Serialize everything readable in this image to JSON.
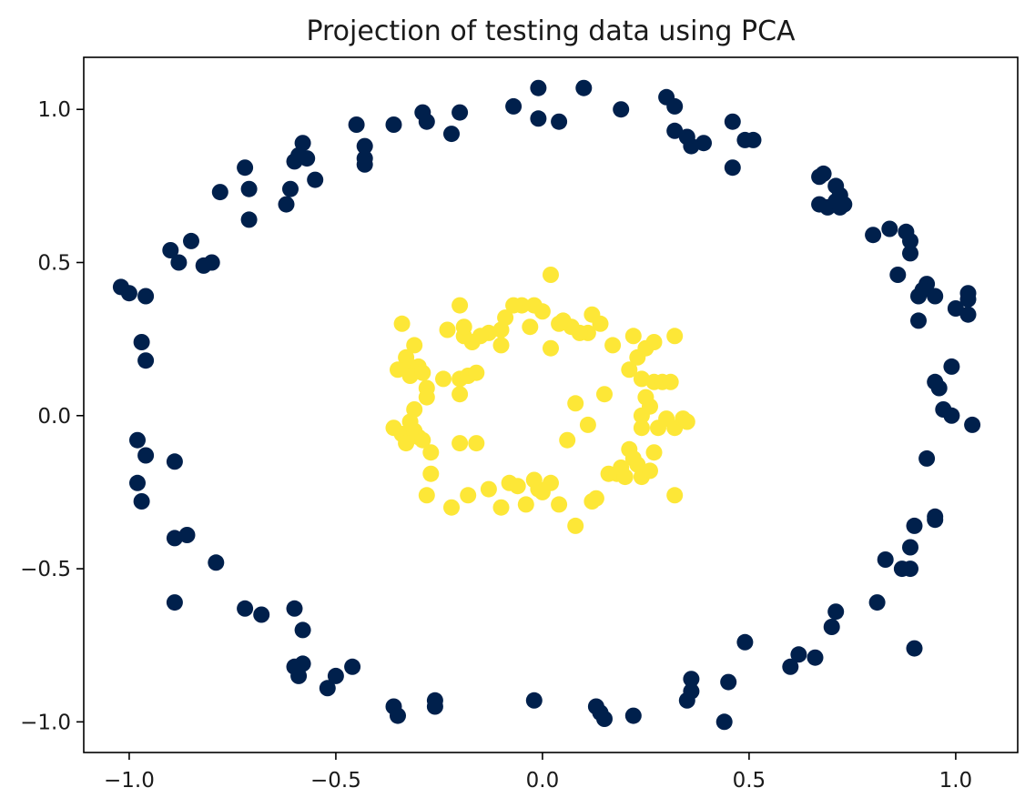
{
  "chart_data": {
    "type": "scatter",
    "title": "Projection of testing data using PCA",
    "xlabel": "",
    "ylabel": "",
    "xlim": [
      -1.11,
      1.15
    ],
    "ylim": [
      -1.1,
      1.17
    ],
    "xticks": [
      -1.0,
      -0.5,
      0.0,
      0.5,
      1.0
    ],
    "xtick_labels": [
      "−1.0",
      "−0.5",
      "0.0",
      "0.5",
      "1.0"
    ],
    "yticks": [
      -1.0,
      -0.5,
      0.0,
      0.5,
      1.0
    ],
    "ytick_labels": [
      "−1.0",
      "−0.5",
      "0.0",
      "0.5",
      "1.0"
    ],
    "grid": false,
    "series": [
      {
        "color": "#00204c",
        "points": [
          [
            -1.02,
            0.42
          ],
          [
            -1.0,
            0.4
          ],
          [
            -0.96,
            0.39
          ],
          [
            -0.97,
            0.24
          ],
          [
            -0.96,
            0.18
          ],
          [
            -0.98,
            -0.08
          ],
          [
            -0.96,
            -0.13
          ],
          [
            -0.98,
            -0.22
          ],
          [
            -0.97,
            -0.28
          ],
          [
            -0.89,
            -0.15
          ],
          [
            -0.89,
            -0.4
          ],
          [
            -0.86,
            -0.39
          ],
          [
            -0.89,
            -0.61
          ],
          [
            -0.79,
            -0.48
          ],
          [
            -0.72,
            -0.63
          ],
          [
            -0.68,
            -0.65
          ],
          [
            -0.6,
            -0.63
          ],
          [
            -0.58,
            -0.7
          ],
          [
            -0.6,
            -0.82
          ],
          [
            -0.58,
            -0.81
          ],
          [
            -0.59,
            -0.85
          ],
          [
            -0.52,
            -0.89
          ],
          [
            -0.5,
            -0.85
          ],
          [
            -0.46,
            -0.82
          ],
          [
            -0.36,
            -0.95
          ],
          [
            -0.35,
            -0.98
          ],
          [
            -0.26,
            -0.93
          ],
          [
            -0.26,
            -0.95
          ],
          [
            -0.02,
            -0.93
          ],
          [
            0.13,
            -0.95
          ],
          [
            0.14,
            -0.97
          ],
          [
            0.15,
            -0.99
          ],
          [
            0.22,
            -0.98
          ],
          [
            0.36,
            -0.86
          ],
          [
            0.36,
            -0.9
          ],
          [
            0.35,
            -0.93
          ],
          [
            0.45,
            -0.87
          ],
          [
            0.44,
            -1.0
          ],
          [
            0.49,
            -0.74
          ],
          [
            0.6,
            -0.82
          ],
          [
            0.62,
            -0.78
          ],
          [
            0.66,
            -0.79
          ],
          [
            0.7,
            -0.69
          ],
          [
            0.71,
            -0.64
          ],
          [
            0.81,
            -0.61
          ],
          [
            0.83,
            -0.47
          ],
          [
            0.87,
            -0.5
          ],
          [
            0.89,
            -0.5
          ],
          [
            0.89,
            -0.43
          ],
          [
            0.9,
            -0.36
          ],
          [
            0.9,
            -0.76
          ],
          [
            0.95,
            -0.33
          ],
          [
            0.95,
            -0.34
          ],
          [
            0.93,
            -0.14
          ],
          [
            0.95,
            0.11
          ],
          [
            0.96,
            0.09
          ],
          [
            0.97,
            0.02
          ],
          [
            0.99,
            0.0
          ],
          [
            0.99,
            0.16
          ],
          [
            1.04,
            -0.03
          ],
          [
            1.0,
            0.35
          ],
          [
            1.03,
            0.33
          ],
          [
            1.03,
            0.4
          ],
          [
            1.03,
            0.38
          ],
          [
            0.91,
            0.31
          ],
          [
            0.91,
            0.39
          ],
          [
            0.93,
            0.43
          ],
          [
            0.95,
            0.39
          ],
          [
            0.92,
            0.41
          ],
          [
            0.89,
            0.53
          ],
          [
            0.89,
            0.57
          ],
          [
            0.88,
            0.6
          ],
          [
            0.86,
            0.46
          ],
          [
            0.84,
            0.61
          ],
          [
            0.8,
            0.59
          ],
          [
            0.67,
            0.78
          ],
          [
            0.68,
            0.79
          ],
          [
            0.71,
            0.75
          ],
          [
            0.72,
            0.72
          ],
          [
            0.73,
            0.69
          ],
          [
            0.72,
            0.68
          ],
          [
            0.67,
            0.69
          ],
          [
            0.69,
            0.68
          ],
          [
            0.71,
            0.7
          ],
          [
            0.51,
            0.9
          ],
          [
            0.49,
            0.9
          ],
          [
            0.46,
            0.96
          ],
          [
            0.46,
            0.81
          ],
          [
            0.39,
            0.89
          ],
          [
            0.36,
            0.88
          ],
          [
            0.32,
            0.93
          ],
          [
            0.35,
            0.91
          ],
          [
            0.3,
            1.04
          ],
          [
            0.32,
            1.01
          ],
          [
            0.19,
            1.0
          ],
          [
            0.1,
            1.07
          ],
          [
            0.04,
            0.96
          ],
          [
            -0.01,
            1.07
          ],
          [
            -0.01,
            0.97
          ],
          [
            -0.07,
            1.01
          ],
          [
            -0.2,
            0.99
          ],
          [
            -0.22,
            0.92
          ],
          [
            -0.29,
            0.99
          ],
          [
            -0.28,
            0.96
          ],
          [
            -0.36,
            0.95
          ],
          [
            -0.45,
            0.95
          ],
          [
            -0.43,
            0.88
          ],
          [
            -0.43,
            0.84
          ],
          [
            -0.43,
            0.82
          ],
          [
            -0.55,
            0.77
          ],
          [
            -0.57,
            0.84
          ],
          [
            -0.58,
            0.89
          ],
          [
            -0.59,
            0.85
          ],
          [
            -0.6,
            0.83
          ],
          [
            -0.61,
            0.74
          ],
          [
            -0.62,
            0.69
          ],
          [
            -0.71,
            0.74
          ],
          [
            -0.72,
            0.81
          ],
          [
            -0.71,
            0.64
          ],
          [
            -0.78,
            0.73
          ],
          [
            -0.8,
            0.5
          ],
          [
            -0.82,
            0.49
          ],
          [
            -0.85,
            0.57
          ],
          [
            -0.88,
            0.5
          ],
          [
            -0.9,
            0.54
          ]
        ]
      },
      {
        "color": "#fde737",
        "points": [
          [
            -0.34,
            0.3
          ],
          [
            -0.31,
            0.23
          ],
          [
            -0.33,
            0.19
          ],
          [
            -0.32,
            0.16
          ],
          [
            -0.35,
            0.15
          ],
          [
            -0.3,
            0.16
          ],
          [
            -0.32,
            0.13
          ],
          [
            -0.29,
            0.14
          ],
          [
            -0.28,
            0.09
          ],
          [
            -0.28,
            0.06
          ],
          [
            -0.31,
            0.02
          ],
          [
            -0.32,
            -0.02
          ],
          [
            -0.36,
            -0.04
          ],
          [
            -0.34,
            -0.06
          ],
          [
            -0.31,
            -0.05
          ],
          [
            -0.3,
            -0.07
          ],
          [
            -0.33,
            -0.09
          ],
          [
            -0.29,
            -0.08
          ],
          [
            -0.27,
            -0.12
          ],
          [
            -0.27,
            -0.19
          ],
          [
            -0.28,
            -0.26
          ],
          [
            -0.2,
            -0.09
          ],
          [
            -0.16,
            -0.09
          ],
          [
            -0.22,
            -0.3
          ],
          [
            -0.18,
            -0.26
          ],
          [
            -0.13,
            -0.24
          ],
          [
            -0.1,
            -0.3
          ],
          [
            -0.08,
            -0.22
          ],
          [
            -0.06,
            -0.23
          ],
          [
            -0.04,
            -0.29
          ],
          [
            -0.02,
            -0.21
          ],
          [
            -0.01,
            -0.24
          ],
          [
            0.0,
            -0.25
          ],
          [
            0.02,
            -0.22
          ],
          [
            0.04,
            -0.29
          ],
          [
            0.08,
            -0.36
          ],
          [
            0.12,
            -0.28
          ],
          [
            0.13,
            -0.27
          ],
          [
            0.16,
            -0.19
          ],
          [
            0.18,
            -0.19
          ],
          [
            0.19,
            -0.17
          ],
          [
            0.2,
            -0.2
          ],
          [
            0.21,
            -0.11
          ],
          [
            0.22,
            -0.14
          ],
          [
            0.23,
            -0.16
          ],
          [
            0.24,
            -0.2
          ],
          [
            0.26,
            -0.18
          ],
          [
            0.27,
            -0.12
          ],
          [
            0.28,
            -0.04
          ],
          [
            0.3,
            -0.01
          ],
          [
            0.32,
            -0.04
          ],
          [
            0.34,
            -0.01
          ],
          [
            0.35,
            -0.02
          ],
          [
            0.32,
            -0.26
          ],
          [
            0.24,
            -0.04
          ],
          [
            0.24,
            0.0
          ],
          [
            0.26,
            0.03
          ],
          [
            0.25,
            0.06
          ],
          [
            0.24,
            0.12
          ],
          [
            0.27,
            0.11
          ],
          [
            0.29,
            0.11
          ],
          [
            0.31,
            0.11
          ],
          [
            0.23,
            0.19
          ],
          [
            0.25,
            0.22
          ],
          [
            0.27,
            0.24
          ],
          [
            0.32,
            0.26
          ],
          [
            0.22,
            0.26
          ],
          [
            0.21,
            0.15
          ],
          [
            0.17,
            0.23
          ],
          [
            0.12,
            0.33
          ],
          [
            0.11,
            0.27
          ],
          [
            0.14,
            0.3
          ],
          [
            0.09,
            0.27
          ],
          [
            0.07,
            0.29
          ],
          [
            0.05,
            0.31
          ],
          [
            0.04,
            0.3
          ],
          [
            0.02,
            0.46
          ],
          [
            0.02,
            0.22
          ],
          [
            0.0,
            0.34
          ],
          [
            -0.02,
            0.36
          ],
          [
            -0.03,
            0.29
          ],
          [
            -0.05,
            0.36
          ],
          [
            -0.07,
            0.36
          ],
          [
            -0.09,
            0.32
          ],
          [
            -0.1,
            0.28
          ],
          [
            -0.1,
            0.23
          ],
          [
            -0.13,
            0.27
          ],
          [
            -0.15,
            0.26
          ],
          [
            -0.17,
            0.24
          ],
          [
            -0.19,
            0.26
          ],
          [
            -0.19,
            0.29
          ],
          [
            -0.2,
            0.36
          ],
          [
            -0.23,
            0.28
          ],
          [
            -0.2,
            0.12
          ],
          [
            -0.18,
            0.13
          ],
          [
            -0.16,
            0.14
          ],
          [
            -0.2,
            0.07
          ],
          [
            -0.24,
            0.12
          ],
          [
            0.08,
            0.04
          ],
          [
            0.15,
            0.07
          ],
          [
            0.11,
            -0.03
          ],
          [
            0.06,
            -0.08
          ]
        ]
      }
    ]
  }
}
